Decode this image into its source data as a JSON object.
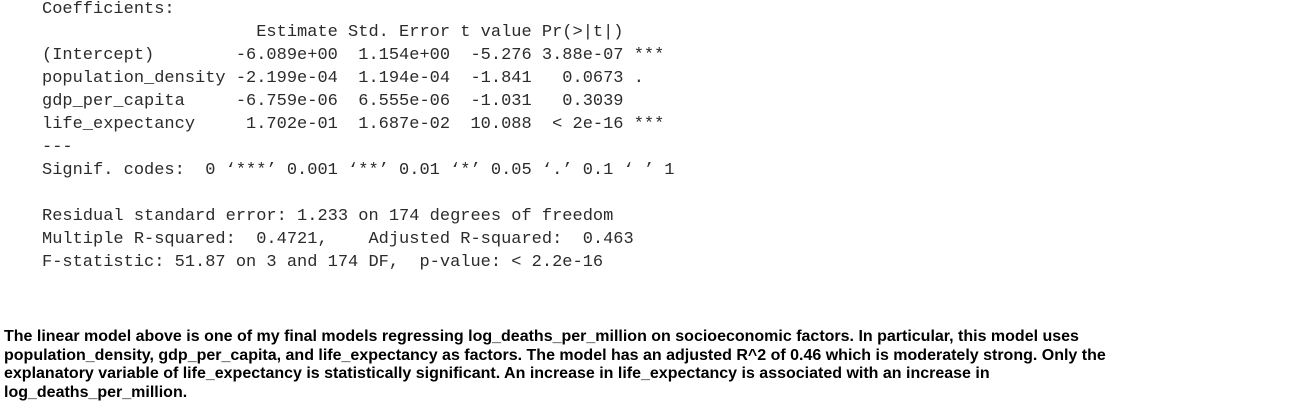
{
  "console": {
    "coefficients": [
      "Coefficients:",
      "                     Estimate Std. Error t value Pr(>|t|)",
      "(Intercept)        -6.089e+00  1.154e+00  -5.276 3.88e-07 ***",
      "population_density -2.199e-04  1.194e-04  -1.841   0.0673 .",
      "gdp_per_capita     -6.759e-06  6.555e-06  -1.031   0.3039",
      "life_expectancy     1.702e-01  1.687e-02  10.088  < 2e-16 ***",
      "---",
      "Signif. codes:  0 ‘***’ 0.001 ‘**’ 0.01 ‘*’ 0.05 ‘.’ 0.1 ‘ ’ 1"
    ],
    "summary": [
      "Residual standard error: 1.233 on 174 degrees of freedom",
      "Multiple R-squared:  0.4721,    Adjusted R-squared:  0.463",
      "F-statistic: 51.87 on 3 and 174 DF,  p-value: < 2.2e-16"
    ]
  },
  "paragraph": {
    "lines": [
      "The linear model above is one of my final models regressing log_deaths_per_million on socioeconomic factors. In particular, this model uses",
      "population_density, gdp_per_capita, and life_expectancy as factors. The model has an adjusted R^2 of 0.46 which is moderately strong. Only the",
      "explanatory variable of life_expectancy is statistically significant. An increase in life_expectancy is associated with an increase in",
      "log_deaths_per_million."
    ]
  }
}
